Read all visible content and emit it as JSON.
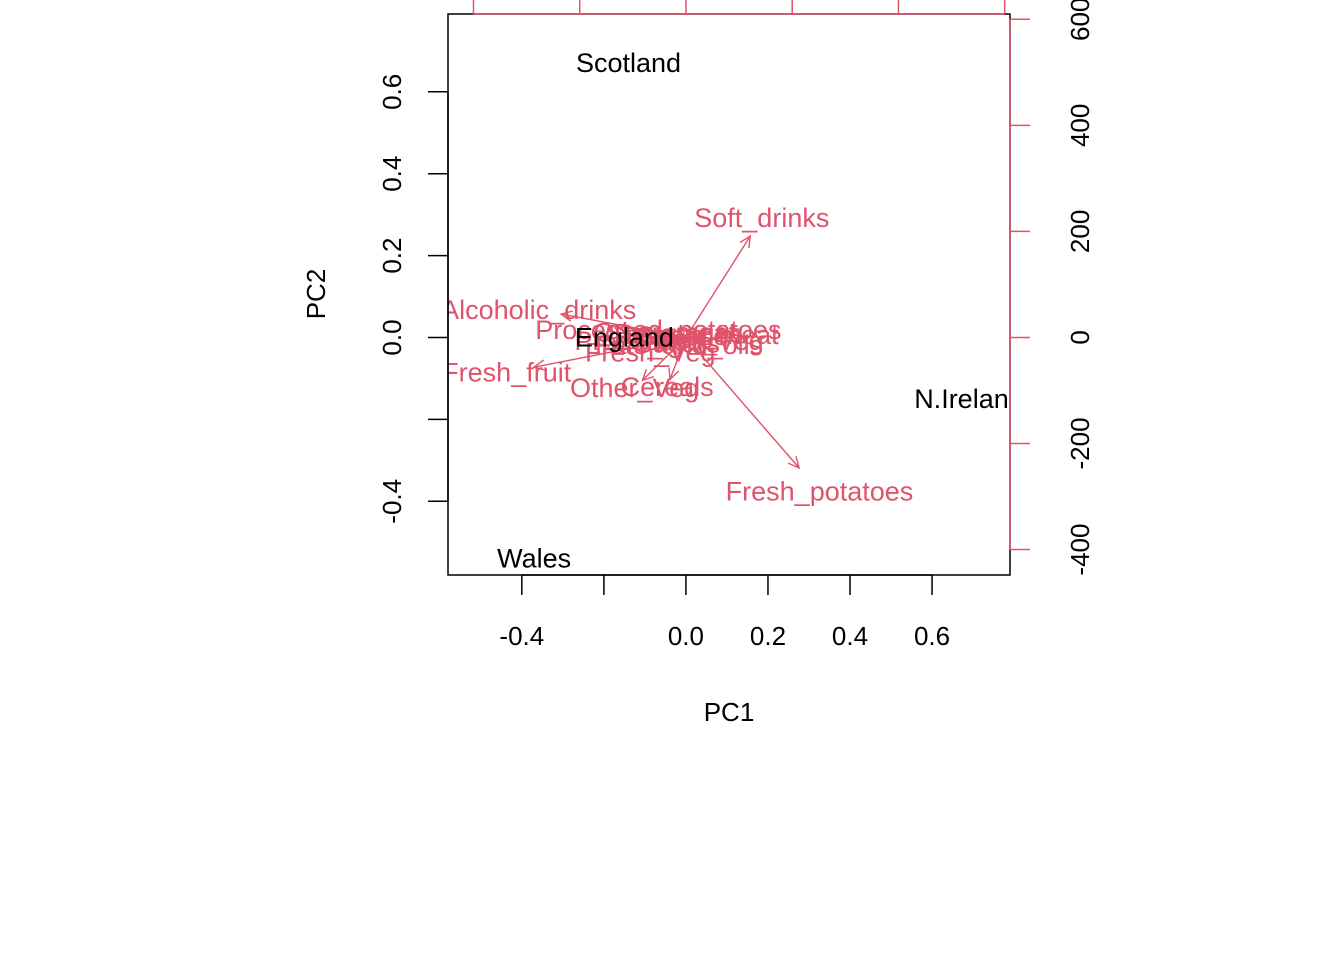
{
  "chart_data": {
    "type": "scatter",
    "title": "",
    "xlabel": "PC1",
    "ylabel": "PC2",
    "xlim": [
      -0.58,
      0.79
    ],
    "ylim": [
      -0.58,
      0.79
    ],
    "x_ticks": [
      -0.4,
      -0.2,
      0.0,
      0.2,
      0.4,
      0.6
    ],
    "x_tick_labels": [
      "-0.4",
      "",
      "0.0",
      "0.2",
      "0.4",
      "0.6"
    ],
    "y_ticks": [
      -0.4,
      -0.2,
      0.0,
      0.2,
      0.4,
      0.6
    ],
    "y_tick_labels": [
      "-0.4",
      "",
      "0.0",
      "0.2",
      "0.4",
      "0.6"
    ],
    "secondary_axis": {
      "range": [
        -448,
        610
      ],
      "right_ticks": [
        -400,
        -200,
        0,
        200,
        400,
        600
      ],
      "right_tick_labels": [
        "-400",
        "-200",
        "0",
        "200",
        "400",
        "600"
      ],
      "top_ticks": [
        -400,
        -200,
        0,
        200,
        400,
        600
      ],
      "color": "#DF536B"
    },
    "observations": [
      {
        "name": "England",
        "x": -0.15,
        "y": 0.0
      },
      {
        "name": "Wales",
        "x": -0.37,
        "y": -0.54
      },
      {
        "name": "Scotland",
        "x": -0.14,
        "y": 0.67
      },
      {
        "name": "N.Ireland",
        "x": 0.69,
        "y": -0.15
      }
    ],
    "variables": [
      {
        "name": "Cheese",
        "x": -7,
        "y": 2
      },
      {
        "name": "Carcass_meat",
        "x": 9,
        "y": 4
      },
      {
        "name": "Other_meat",
        "x": -34,
        "y": 8
      },
      {
        "name": "Fish",
        "x": -8,
        "y": -3
      },
      {
        "name": "Fats_and_oils",
        "x": -11,
        "y": -12
      },
      {
        "name": "Sugars",
        "x": -14,
        "y": -10
      },
      {
        "name": "Fresh_potatoes",
        "x": 213,
        "y": -246
      },
      {
        "name": "Fresh_Veg",
        "x": -57,
        "y": -24
      },
      {
        "name": "Other_Veg",
        "x": -82,
        "y": -81
      },
      {
        "name": "Processed_potatoes",
        "x": -44,
        "y": 12
      },
      {
        "name": "Processed_Veg",
        "x": -27,
        "y": -6
      },
      {
        "name": "Fresh_fruit",
        "x": -286,
        "y": -56
      },
      {
        "name": "Cereals",
        "x": -30,
        "y": -79
      },
      {
        "name": "Beverages",
        "x": -12,
        "y": 6
      },
      {
        "name": "Soft_drinks",
        "x": 121,
        "y": 191
      },
      {
        "name": "Alcoholic_drinks",
        "x": -235,
        "y": 44
      }
    ],
    "colors": {
      "observations": "#000000",
      "variables": "#DF536B",
      "box": "#000000"
    }
  }
}
